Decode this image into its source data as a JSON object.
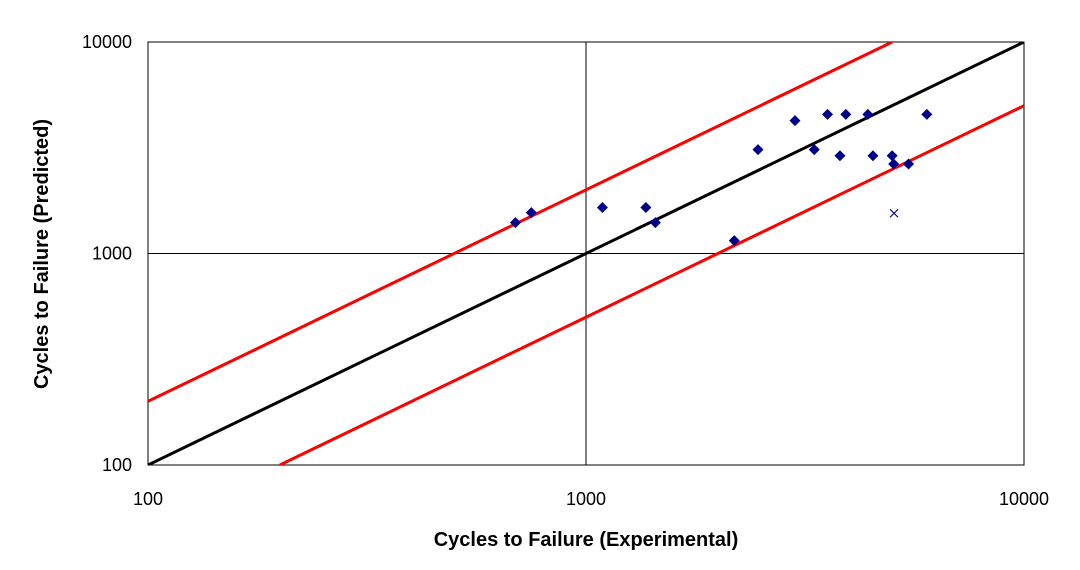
{
  "chart_data": {
    "type": "scatter",
    "x_scale": "log",
    "y_scale": "log",
    "xlabel": "Cycles to Failure (Experimental)",
    "ylabel": "Cycles to Failure (Predicted)",
    "xlim": [
      100,
      10000
    ],
    "ylim": [
      100,
      10000
    ],
    "x_ticks": [
      100,
      1000,
      10000
    ],
    "y_ticks": [
      100,
      1000,
      10000
    ],
    "x_tick_labels": [
      "100",
      "1000",
      "10000"
    ],
    "y_tick_labels": [
      "100",
      "1000",
      "10000"
    ],
    "grid": true,
    "legend": "none",
    "series": [
      {
        "name": "diamond points",
        "marker": "diamond",
        "color": "#00008B",
        "points": [
          [
            690,
            1400
          ],
          [
            750,
            1560
          ],
          [
            1090,
            1650
          ],
          [
            1370,
            1650
          ],
          [
            1440,
            1400
          ],
          [
            2180,
            1150
          ],
          [
            2470,
            3100
          ],
          [
            3000,
            4250
          ],
          [
            3320,
            3100
          ],
          [
            3560,
            4550
          ],
          [
            3800,
            2900
          ],
          [
            3920,
            4550
          ],
          [
            4400,
            4550
          ],
          [
            4520,
            2900
          ],
          [
            5000,
            2900
          ],
          [
            5040,
            2650
          ],
          [
            5450,
            2650
          ],
          [
            6000,
            4550
          ]
        ]
      },
      {
        "name": "x point",
        "marker": "x",
        "color": "#00008B",
        "points": [
          [
            5050,
            1550
          ]
        ]
      }
    ],
    "lines": [
      {
        "name": "1:1 line",
        "color": "#000000",
        "points": [
          [
            100,
            100
          ],
          [
            10000,
            10000
          ]
        ]
      },
      {
        "name": "upper factor-2 band",
        "color": "#FF0000",
        "points": [
          [
            100,
            200
          ],
          [
            5000,
            10000
          ]
        ]
      },
      {
        "name": "lower factor-2 band",
        "color": "#FF0000",
        "points": [
          [
            200,
            100
          ],
          [
            10000,
            5000
          ]
        ]
      }
    ]
  }
}
